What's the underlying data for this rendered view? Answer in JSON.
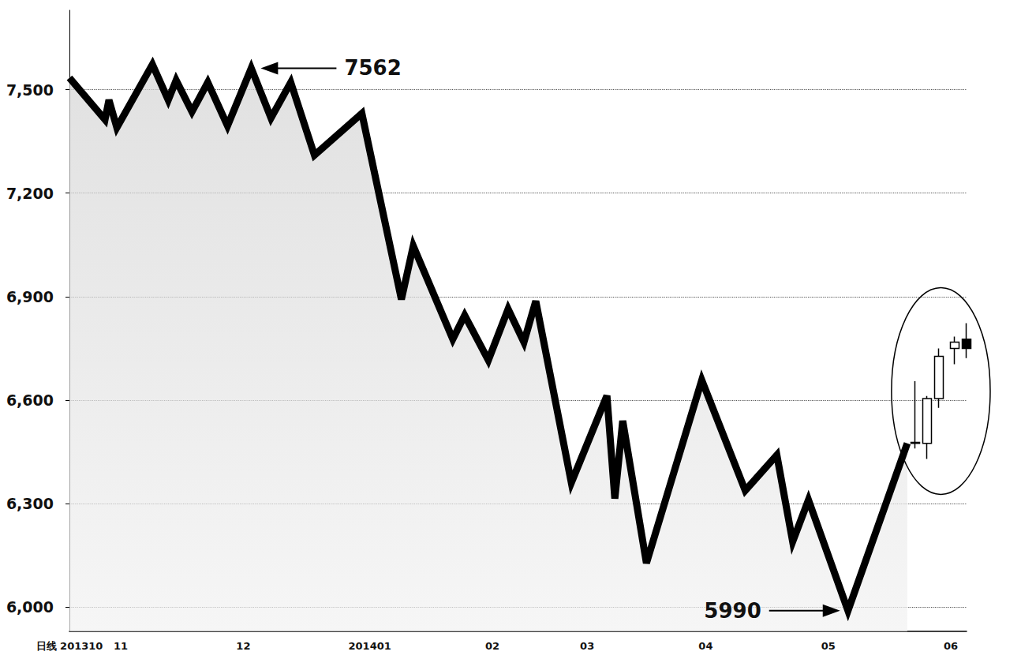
{
  "chart_data": {
    "type": "line",
    "categories": [
      "日线 201310",
      null,
      null,
      null,
      null,
      null,
      null,
      null,
      null,
      null,
      null,
      null,
      null,
      "11",
      null,
      null,
      null,
      null,
      null,
      null,
      null,
      null,
      null,
      null,
      null,
      null,
      null,
      null,
      null,
      null,
      null,
      null,
      null,
      null,
      null,
      null,
      null,
      null,
      null,
      null,
      null,
      null,
      null,
      null,
      "12",
      null,
      null,
      null,
      null,
      null,
      null,
      null,
      null,
      null,
      null,
      null,
      null,
      null,
      null,
      null,
      null,
      null,
      null,
      null,
      null,
      null,
      null,
      null,
      null,
      null,
      null,
      null,
      null,
      null,
      null,
      null,
      "201401",
      null,
      null,
      null,
      null,
      null,
      null,
      null,
      null,
      null,
      null,
      null,
      null,
      null,
      null,
      null,
      null,
      null,
      null,
      null,
      null,
      null,
      null,
      null,
      null,
      null,
      null,
      null,
      null,
      null,
      null,
      "02",
      null,
      null,
      null,
      null,
      null,
      null,
      null,
      null,
      null,
      null,
      null,
      null,
      null,
      null,
      null,
      null,
      null,
      null,
      null,
      null,
      null,
      null,
      null,
      "03",
      null,
      null,
      null,
      null,
      null,
      null,
      null,
      null,
      null,
      null,
      null,
      null,
      null,
      null,
      null,
      null,
      null,
      null,
      null,
      null,
      null,
      null,
      null,
      null,
      null,
      null,
      null,
      null,
      null,
      "04",
      null,
      null,
      null,
      null,
      null,
      null,
      null,
      null,
      null,
      null,
      null,
      null,
      null,
      null,
      null,
      null,
      null,
      null,
      null,
      null,
      null,
      null,
      null,
      null,
      null,
      null,
      null,
      null,
      null,
      null,
      "05",
      null,
      null,
      null,
      null,
      null,
      null,
      null,
      null,
      null,
      null,
      null,
      null,
      null,
      null,
      null,
      null,
      null,
      null,
      null,
      null,
      null,
      null,
      null,
      null,
      null,
      null,
      null,
      null,
      null,
      null,
      "06",
      null,
      null,
      null,
      null
    ],
    "series": [
      {
        "type": "line",
        "color": "#000000",
        "values": [
          7534,
          null,
          null,
          null,
          null,
          null,
          null,
          null,
          null,
          7413,
          7470,
          null,
          7390,
          null,
          null,
          null,
          null,
          null,
          null,
          null,
          null,
          7573,
          null,
          null,
          null,
          7470,
          null,
          7527,
          null,
          null,
          null,
          7436,
          null,
          null,
          null,
          7521,
          null,
          null,
          null,
          null,
          7395,
          null,
          null,
          null,
          null,
          null,
          7562,
          null,
          null,
          null,
          null,
          7418,
          null,
          null,
          null,
          null,
          7521,
          null,
          null,
          null,
          null,
          null,
          7310,
          null,
          null,
          null,
          null,
          null,
          null,
          null,
          null,
          null,
          null,
          null,
          7431,
          null,
          null,
          null,
          null,
          null,
          null,
          null,
          null,
          null,
          6892,
          null,
          null,
          7047,
          null,
          null,
          null,
          null,
          null,
          null,
          null,
          null,
          null,
          6777,
          null,
          null,
          6846,
          null,
          null,
          null,
          null,
          null,
          6716,
          null,
          null,
          null,
          null,
          6864,
          null,
          null,
          null,
          6768,
          null,
          null,
          6887,
          null,
          null,
          null,
          null,
          null,
          null,
          null,
          null,
          6361,
          null,
          null,
          null,
          null,
          null,
          null,
          null,
          null,
          6613,
          null,
          6315,
          null,
          6540,
          null,
          null,
          null,
          null,
          null,
          6128,
          null,
          null,
          null,
          null,
          null,
          null,
          null,
          null,
          null,
          null,
          null,
          null,
          null,
          6658,
          null,
          null,
          null,
          null,
          null,
          null,
          null,
          null,
          null,
          null,
          6338,
          null,
          null,
          null,
          null,
          null,
          null,
          null,
          6441,
          null,
          null,
          null,
          6190,
          null,
          null,
          null,
          6311,
          null,
          null,
          null,
          null,
          null,
          null,
          null,
          null,
          null,
          5990,
          null,
          null,
          null,
          null,
          null,
          null,
          null,
          null,
          null,
          null,
          null,
          null,
          null,
          null,
          6475,
          null,
          null,
          null,
          null,
          null,
          null,
          null,
          null,
          null,
          null,
          null,
          null,
          null,
          null,
          null
        ]
      },
      {
        "type": "candlestick",
        "color": "#000000",
        "values": [
          null,
          null,
          null,
          null,
          null,
          null,
          null,
          null,
          null,
          null,
          null,
          null,
          null,
          null,
          null,
          null,
          null,
          null,
          null,
          null,
          null,
          null,
          null,
          null,
          null,
          null,
          null,
          null,
          null,
          null,
          null,
          null,
          null,
          null,
          null,
          null,
          null,
          null,
          null,
          null,
          null,
          null,
          null,
          null,
          null,
          null,
          null,
          null,
          null,
          null,
          null,
          null,
          null,
          null,
          null,
          null,
          null,
          null,
          null,
          null,
          null,
          null,
          null,
          null,
          null,
          null,
          null,
          null,
          null,
          null,
          null,
          null,
          null,
          null,
          null,
          null,
          null,
          null,
          null,
          null,
          null,
          null,
          null,
          null,
          null,
          null,
          null,
          null,
          null,
          null,
          null,
          null,
          null,
          null,
          null,
          null,
          null,
          null,
          null,
          null,
          null,
          null,
          null,
          null,
          null,
          null,
          null,
          null,
          null,
          null,
          null,
          null,
          null,
          null,
          null,
          null,
          null,
          null,
          null,
          null,
          null,
          null,
          null,
          null,
          null,
          null,
          null,
          null,
          null,
          null,
          null,
          null,
          null,
          null,
          null,
          null,
          null,
          null,
          null,
          null,
          null,
          null,
          null,
          null,
          null,
          null,
          null,
          null,
          null,
          null,
          null,
          null,
          null,
          null,
          null,
          null,
          null,
          null,
          null,
          null,
          null,
          null,
          null,
          null,
          null,
          null,
          null,
          null,
          null,
          null,
          null,
          null,
          null,
          null,
          null,
          null,
          null,
          null,
          null,
          null,
          null,
          null,
          null,
          null,
          null,
          null,
          null,
          null,
          null,
          null,
          null,
          null,
          null,
          null,
          null,
          null,
          null,
          null,
          null,
          null,
          null,
          null,
          null,
          null,
          null,
          null,
          null,
          null,
          null,
          null,
          null,
          null,
          null,
          null,
          [
            6475,
            6478,
            6460,
            6655
          ],
          null,
          null,
          [
            6475,
            6605,
            6430,
            6612
          ],
          null,
          null,
          [
            6605,
            6727,
            6578,
            6750
          ],
          null,
          null,
          null,
          [
            6750,
            6768,
            6704,
            6784
          ],
          null,
          null,
          [
            6777,
            6750,
            6722,
            6823
          ]
        ]
      }
    ],
    "ylim": [
      5930,
      7730
    ],
    "yticks": [
      6000,
      6300,
      6600,
      6900,
      7200,
      7500
    ],
    "grid": true,
    "annotations": [
      {
        "text": "7562",
        "value": 7562
      },
      {
        "text": "5990",
        "value": 5990
      }
    ]
  }
}
